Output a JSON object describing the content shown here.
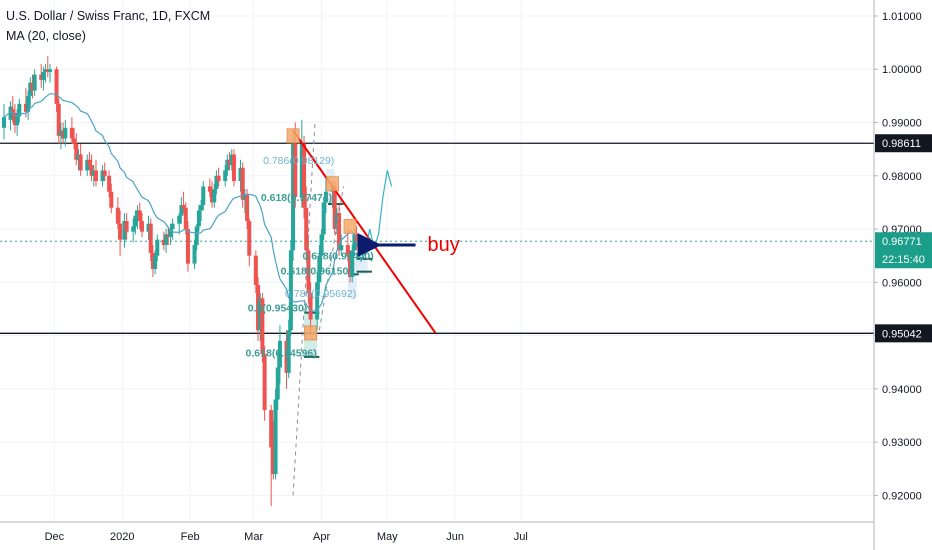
{
  "header": {
    "symbol_line": "U.S. Dollar / Swiss Franc, 1D, FXCM",
    "indicator_line": "MA (20, close)"
  },
  "colors": {
    "up": "#26a69a",
    "down": "#ef5350",
    "ma": "#4aa3c9",
    "trendline": "#f20000",
    "fib": "#3b9d96",
    "fib_label_alt": "#6fb3d2",
    "arrow": "#0b1b6e",
    "buy_text": "#f20000",
    "last_price_bg": "#1b9e8a",
    "dashed_current": "#2aa198"
  },
  "chart_data": {
    "type": "candlestick",
    "ylim": [
      0.915,
      1.013
    ],
    "yticks": [
      "1.01000",
      "1.00000",
      "0.99000",
      "0.98000",
      "0.97000",
      "0.96000",
      "0.95000",
      "0.94000",
      "0.93000",
      "0.92000"
    ],
    "xticks": [
      "Dec",
      "2020",
      "Feb",
      "Mar",
      "Apr",
      "May",
      "Jun",
      "Jul"
    ],
    "horizontal_levels": [
      {
        "value": 0.98611,
        "label": "0.98611"
      },
      {
        "value": 0.95042,
        "label": "0.95042"
      }
    ],
    "last_price": {
      "value": 0.96771,
      "label": "0.96771",
      "countdown": "22:15:40"
    },
    "trendline": {
      "from": [
        "2020-03-19",
        0.9885
      ],
      "to": [
        "2020-05-23",
        0.9505
      ]
    },
    "fib_labels": [
      {
        "text": "0.786(0.98129)",
        "date": "2020-03-19",
        "price": 0.983,
        "alt": true
      },
      {
        "text": "0.618(0.97474)",
        "date": "2020-03-18",
        "price": 0.976,
        "alt": false
      },
      {
        "text": "0.5(0.95430)",
        "date": "2020-03-12",
        "price": 0.9553,
        "alt": false
      },
      {
        "text": "0.618(0.94596)",
        "date": "2020-03-11",
        "price": 0.9468,
        "alt": false
      },
      {
        "text": "0.618(0.96440)",
        "date": "2020-04-06",
        "price": 0.965,
        "alt": false
      },
      {
        "text": "0.618(0.96150)",
        "date": "2020-03-27",
        "price": 0.9622,
        "alt": false
      },
      {
        "text": "0.786(0.95692)",
        "date": "2020-03-29",
        "price": 0.958,
        "alt": true
      }
    ],
    "annotation": {
      "text": "buy",
      "arrow_date": "2020-04-22",
      "price": 0.967
    },
    "series": [
      {
        "date": "2019-11-08",
        "o": 0.989,
        "h": 0.9935,
        "l": 0.9868,
        "c": 0.991
      },
      {
        "date": "2019-11-11",
        "o": 0.9905,
        "h": 0.994,
        "l": 0.9885,
        "c": 0.993
      },
      {
        "date": "2019-11-12",
        "o": 0.9925,
        "h": 0.995,
        "l": 0.99,
        "c": 0.9918
      },
      {
        "date": "2019-11-13",
        "o": 0.9918,
        "h": 0.9935,
        "l": 0.988,
        "c": 0.9895
      },
      {
        "date": "2019-11-14",
        "o": 0.9895,
        "h": 0.9925,
        "l": 0.9875,
        "c": 0.9912
      },
      {
        "date": "2019-11-15",
        "o": 0.9912,
        "h": 0.9945,
        "l": 0.99,
        "c": 0.9935
      },
      {
        "date": "2019-11-18",
        "o": 0.9935,
        "h": 0.9965,
        "l": 0.991,
        "c": 0.992
      },
      {
        "date": "2019-11-19",
        "o": 0.992,
        "h": 0.996,
        "l": 0.9905,
        "c": 0.995
      },
      {
        "date": "2019-11-20",
        "o": 0.995,
        "h": 0.9985,
        "l": 0.993,
        "c": 0.9975
      },
      {
        "date": "2019-11-21",
        "o": 0.9975,
        "h": 0.999,
        "l": 0.9945,
        "c": 0.996
      },
      {
        "date": "2019-11-22",
        "o": 0.996,
        "h": 1.0,
        "l": 0.995,
        "c": 0.999
      },
      {
        "date": "2019-11-25",
        "o": 0.999,
        "h": 1.001,
        "l": 0.9965,
        "c": 0.998
      },
      {
        "date": "2019-11-26",
        "o": 0.998,
        "h": 1.0005,
        "l": 0.996,
        "c": 0.9995
      },
      {
        "date": "2019-11-27",
        "o": 0.9995,
        "h": 1.001,
        "l": 0.9975,
        "c": 1.0
      },
      {
        "date": "2019-11-28",
        "o": 1.0,
        "h": 1.0025,
        "l": 0.9985,
        "c": 0.9995
      },
      {
        "date": "2019-11-29",
        "o": 0.9995,
        "h": 1.001,
        "l": 0.9975,
        "c": 1.0
      },
      {
        "date": "2019-12-02",
        "o": 1.0,
        "h": 1.0005,
        "l": 0.992,
        "c": 0.9935
      },
      {
        "date": "2019-12-03",
        "o": 0.9935,
        "h": 0.9945,
        "l": 0.986,
        "c": 0.9875
      },
      {
        "date": "2019-12-04",
        "o": 0.9875,
        "h": 0.99,
        "l": 0.985,
        "c": 0.9885
      },
      {
        "date": "2019-12-05",
        "o": 0.9885,
        "h": 0.99,
        "l": 0.986,
        "c": 0.987
      },
      {
        "date": "2019-12-06",
        "o": 0.987,
        "h": 0.9905,
        "l": 0.9855,
        "c": 0.989
      },
      {
        "date": "2019-12-09",
        "o": 0.989,
        "h": 0.991,
        "l": 0.986,
        "c": 0.987
      },
      {
        "date": "2019-12-10",
        "o": 0.987,
        "h": 0.989,
        "l": 0.985,
        "c": 0.986
      },
      {
        "date": "2019-12-11",
        "o": 0.986,
        "h": 0.988,
        "l": 0.982,
        "c": 0.983
      },
      {
        "date": "2019-12-12",
        "o": 0.983,
        "h": 0.985,
        "l": 0.981,
        "c": 0.984
      },
      {
        "date": "2019-12-13",
        "o": 0.984,
        "h": 0.986,
        "l": 0.98,
        "c": 0.981
      },
      {
        "date": "2019-12-16",
        "o": 0.981,
        "h": 0.984,
        "l": 0.98,
        "c": 0.983
      },
      {
        "date": "2019-12-17",
        "o": 0.983,
        "h": 0.9845,
        "l": 0.981,
        "c": 0.982
      },
      {
        "date": "2019-12-18",
        "o": 0.982,
        "h": 0.984,
        "l": 0.979,
        "c": 0.98
      },
      {
        "date": "2019-12-19",
        "o": 0.98,
        "h": 0.982,
        "l": 0.978,
        "c": 0.981
      },
      {
        "date": "2019-12-20",
        "o": 0.981,
        "h": 0.983,
        "l": 0.978,
        "c": 0.979
      },
      {
        "date": "2019-12-23",
        "o": 0.979,
        "h": 0.982,
        "l": 0.978,
        "c": 0.981
      },
      {
        "date": "2019-12-24",
        "o": 0.981,
        "h": 0.9825,
        "l": 0.979,
        "c": 0.98
      },
      {
        "date": "2019-12-26",
        "o": 0.98,
        "h": 0.981,
        "l": 0.976,
        "c": 0.977
      },
      {
        "date": "2019-12-27",
        "o": 0.977,
        "h": 0.9785,
        "l": 0.973,
        "c": 0.974
      },
      {
        "date": "2019-12-30",
        "o": 0.974,
        "h": 0.976,
        "l": 0.97,
        "c": 0.971
      },
      {
        "date": "2019-12-31",
        "o": 0.971,
        "h": 0.9735,
        "l": 0.965,
        "c": 0.968
      },
      {
        "date": "2020-01-02",
        "o": 0.968,
        "h": 0.973,
        "l": 0.9665,
        "c": 0.9715
      },
      {
        "date": "2020-01-03",
        "o": 0.9715,
        "h": 0.973,
        "l": 0.968,
        "c": 0.9695
      },
      {
        "date": "2020-01-06",
        "o": 0.9695,
        "h": 0.972,
        "l": 0.9675,
        "c": 0.9705
      },
      {
        "date": "2020-01-07",
        "o": 0.9705,
        "h": 0.9735,
        "l": 0.969,
        "c": 0.9725
      },
      {
        "date": "2020-01-08",
        "o": 0.9725,
        "h": 0.9745,
        "l": 0.97,
        "c": 0.9735
      },
      {
        "date": "2020-01-09",
        "o": 0.9735,
        "h": 0.975,
        "l": 0.97,
        "c": 0.9715
      },
      {
        "date": "2020-01-10",
        "o": 0.9715,
        "h": 0.973,
        "l": 0.9685,
        "c": 0.9695
      },
      {
        "date": "2020-01-13",
        "o": 0.9695,
        "h": 0.9725,
        "l": 0.968,
        "c": 0.971
      },
      {
        "date": "2020-01-14",
        "o": 0.971,
        "h": 0.972,
        "l": 0.964,
        "c": 0.9655
      },
      {
        "date": "2020-01-15",
        "o": 0.9655,
        "h": 0.967,
        "l": 0.961,
        "c": 0.9625
      },
      {
        "date": "2020-01-16",
        "o": 0.9625,
        "h": 0.966,
        "l": 0.9615,
        "c": 0.965
      },
      {
        "date": "2020-01-17",
        "o": 0.965,
        "h": 0.969,
        "l": 0.964,
        "c": 0.968
      },
      {
        "date": "2020-01-20",
        "o": 0.968,
        "h": 0.9695,
        "l": 0.966,
        "c": 0.967
      },
      {
        "date": "2020-01-21",
        "o": 0.967,
        "h": 0.97,
        "l": 0.9655,
        "c": 0.969
      },
      {
        "date": "2020-01-22",
        "o": 0.969,
        "h": 0.9705,
        "l": 0.967,
        "c": 0.9685
      },
      {
        "date": "2020-01-23",
        "o": 0.9685,
        "h": 0.971,
        "l": 0.967,
        "c": 0.97
      },
      {
        "date": "2020-01-24",
        "o": 0.97,
        "h": 0.972,
        "l": 0.968,
        "c": 0.971
      },
      {
        "date": "2020-01-27",
        "o": 0.971,
        "h": 0.973,
        "l": 0.969,
        "c": 0.9725
      },
      {
        "date": "2020-01-28",
        "o": 0.9725,
        "h": 0.976,
        "l": 0.971,
        "c": 0.9745
      },
      {
        "date": "2020-01-29",
        "o": 0.9745,
        "h": 0.977,
        "l": 0.973,
        "c": 0.974
      },
      {
        "date": "2020-01-30",
        "o": 0.974,
        "h": 0.975,
        "l": 0.969,
        "c": 0.97
      },
      {
        "date": "2020-01-31",
        "o": 0.97,
        "h": 0.9715,
        "l": 0.962,
        "c": 0.9635
      },
      {
        "date": "2020-02-03",
        "o": 0.9635,
        "h": 0.968,
        "l": 0.9625,
        "c": 0.967
      },
      {
        "date": "2020-02-04",
        "o": 0.967,
        "h": 0.971,
        "l": 0.966,
        "c": 0.9705
      },
      {
        "date": "2020-02-05",
        "o": 0.9705,
        "h": 0.9745,
        "l": 0.9695,
        "c": 0.9735
      },
      {
        "date": "2020-02-06",
        "o": 0.9735,
        "h": 0.9755,
        "l": 0.9715,
        "c": 0.9745
      },
      {
        "date": "2020-02-07",
        "o": 0.9745,
        "h": 0.979,
        "l": 0.9735,
        "c": 0.978
      },
      {
        "date": "2020-02-10",
        "o": 0.978,
        "h": 0.9795,
        "l": 0.976,
        "c": 0.977
      },
      {
        "date": "2020-02-11",
        "o": 0.977,
        "h": 0.979,
        "l": 0.974,
        "c": 0.975
      },
      {
        "date": "2020-02-12",
        "o": 0.975,
        "h": 0.9785,
        "l": 0.974,
        "c": 0.9775
      },
      {
        "date": "2020-02-13",
        "o": 0.9775,
        "h": 0.981,
        "l": 0.9765,
        "c": 0.98
      },
      {
        "date": "2020-02-14",
        "o": 0.98,
        "h": 0.9815,
        "l": 0.978,
        "c": 0.979
      },
      {
        "date": "2020-02-17",
        "o": 0.979,
        "h": 0.982,
        "l": 0.978,
        "c": 0.981
      },
      {
        "date": "2020-02-18",
        "o": 0.981,
        "h": 0.984,
        "l": 0.98,
        "c": 0.983
      },
      {
        "date": "2020-02-19",
        "o": 0.983,
        "h": 0.9845,
        "l": 0.981,
        "c": 0.982
      },
      {
        "date": "2020-02-20",
        "o": 0.982,
        "h": 0.985,
        "l": 0.981,
        "c": 0.984
      },
      {
        "date": "2020-02-21",
        "o": 0.984,
        "h": 0.985,
        "l": 0.978,
        "c": 0.979
      },
      {
        "date": "2020-02-24",
        "o": 0.979,
        "h": 0.983,
        "l": 0.977,
        "c": 0.9815
      },
      {
        "date": "2020-02-25",
        "o": 0.9815,
        "h": 0.9825,
        "l": 0.974,
        "c": 0.9755
      },
      {
        "date": "2020-02-26",
        "o": 0.9755,
        "h": 0.9775,
        "l": 0.973,
        "c": 0.9765
      },
      {
        "date": "2020-02-27",
        "o": 0.9765,
        "h": 0.9775,
        "l": 0.97,
        "c": 0.9715
      },
      {
        "date": "2020-02-28",
        "o": 0.9715,
        "h": 0.972,
        "l": 0.963,
        "c": 0.965
      },
      {
        "date": "2020-03-02",
        "o": 0.965,
        "h": 0.966,
        "l": 0.958,
        "c": 0.9595
      },
      {
        "date": "2020-03-03",
        "o": 0.9595,
        "h": 0.961,
        "l": 0.949,
        "c": 0.951
      },
      {
        "date": "2020-03-04",
        "o": 0.951,
        "h": 0.958,
        "l": 0.949,
        "c": 0.957
      },
      {
        "date": "2020-03-05",
        "o": 0.957,
        "h": 0.958,
        "l": 0.945,
        "c": 0.9465
      },
      {
        "date": "2020-03-06",
        "o": 0.9465,
        "h": 0.948,
        "l": 0.934,
        "c": 0.936
      },
      {
        "date": "2020-03-09",
        "o": 0.936,
        "h": 0.937,
        "l": 0.918,
        "c": 0.929
      },
      {
        "date": "2020-03-10",
        "o": 0.929,
        "h": 0.934,
        "l": 0.923,
        "c": 0.924
      },
      {
        "date": "2020-03-11",
        "o": 0.924,
        "h": 0.94,
        "l": 0.923,
        "c": 0.938
      },
      {
        "date": "2020-03-12",
        "o": 0.938,
        "h": 0.947,
        "l": 0.936,
        "c": 0.944
      },
      {
        "date": "2020-03-13",
        "o": 0.944,
        "h": 0.952,
        "l": 0.941,
        "c": 0.949
      },
      {
        "date": "2020-03-16",
        "o": 0.949,
        "h": 0.951,
        "l": 0.94,
        "c": 0.943
      },
      {
        "date": "2020-03-17",
        "o": 0.943,
        "h": 0.953,
        "l": 0.942,
        "c": 0.951
      },
      {
        "date": "2020-03-18",
        "o": 0.951,
        "h": 0.968,
        "l": 0.95,
        "c": 0.966
      },
      {
        "date": "2020-03-19",
        "o": 0.966,
        "h": 0.988,
        "l": 0.964,
        "c": 0.986
      },
      {
        "date": "2020-03-20",
        "o": 0.986,
        "h": 0.99,
        "l": 0.974,
        "c": 0.976
      },
      {
        "date": "2020-03-23",
        "o": 0.976,
        "h": 0.9905,
        "l": 0.974,
        "c": 0.986
      },
      {
        "date": "2020-03-24",
        "o": 0.986,
        "h": 0.9875,
        "l": 0.972,
        "c": 0.974
      },
      {
        "date": "2020-03-25",
        "o": 0.974,
        "h": 0.978,
        "l": 0.964,
        "c": 0.966
      },
      {
        "date": "2020-03-26",
        "o": 0.966,
        "h": 0.969,
        "l": 0.956,
        "c": 0.958
      },
      {
        "date": "2020-03-27",
        "o": 0.958,
        "h": 0.96,
        "l": 0.95,
        "c": 0.953
      },
      {
        "date": "2020-03-30",
        "o": 0.953,
        "h": 0.962,
        "l": 0.951,
        "c": 0.96
      },
      {
        "date": "2020-03-31",
        "o": 0.96,
        "h": 0.967,
        "l": 0.958,
        "c": 0.965
      },
      {
        "date": "2020-04-01",
        "o": 0.965,
        "h": 0.97,
        "l": 0.962,
        "c": 0.969
      },
      {
        "date": "2020-04-02",
        "o": 0.969,
        "h": 0.976,
        "l": 0.968,
        "c": 0.975
      },
      {
        "date": "2020-04-03",
        "o": 0.975,
        "h": 0.98,
        "l": 0.973,
        "c": 0.977
      },
      {
        "date": "2020-04-06",
        "o": 0.977,
        "h": 0.979,
        "l": 0.974,
        "c": 0.978
      },
      {
        "date": "2020-04-07",
        "o": 0.978,
        "h": 0.979,
        "l": 0.969,
        "c": 0.97
      },
      {
        "date": "2020-04-08",
        "o": 0.97,
        "h": 0.974,
        "l": 0.969,
        "c": 0.973
      },
      {
        "date": "2020-04-09",
        "o": 0.973,
        "h": 0.9745,
        "l": 0.965,
        "c": 0.966
      },
      {
        "date": "2020-04-10",
        "o": 0.966,
        "h": 0.969,
        "l": 0.965,
        "c": 0.967
      },
      {
        "date": "2020-04-13",
        "o": 0.967,
        "h": 0.97,
        "l": 0.964,
        "c": 0.965
      },
      {
        "date": "2020-04-14",
        "o": 0.965,
        "h": 0.966,
        "l": 0.96,
        "c": 0.961
      },
      {
        "date": "2020-04-15",
        "o": 0.961,
        "h": 0.967,
        "l": 0.96,
        "c": 0.966
      },
      {
        "date": "2020-04-16",
        "o": 0.966,
        "h": 0.97,
        "l": 0.965,
        "c": 0.969
      },
      {
        "date": "2020-04-17",
        "o": 0.969,
        "h": 0.9705,
        "l": 0.966,
        "c": 0.9677
      }
    ],
    "ma_period": 20,
    "forecast_path": [
      [
        "2020-04-17",
        0.9677
      ],
      [
        "2020-04-19",
        0.964
      ],
      [
        "2020-04-21",
        0.9655
      ],
      [
        "2020-04-23",
        0.97
      ],
      [
        "2020-04-25",
        0.9665
      ],
      [
        "2020-04-27",
        0.969
      ],
      [
        "2020-04-29",
        0.976
      ],
      [
        "2020-05-01",
        0.981
      ],
      [
        "2020-05-03",
        0.978
      ]
    ]
  }
}
